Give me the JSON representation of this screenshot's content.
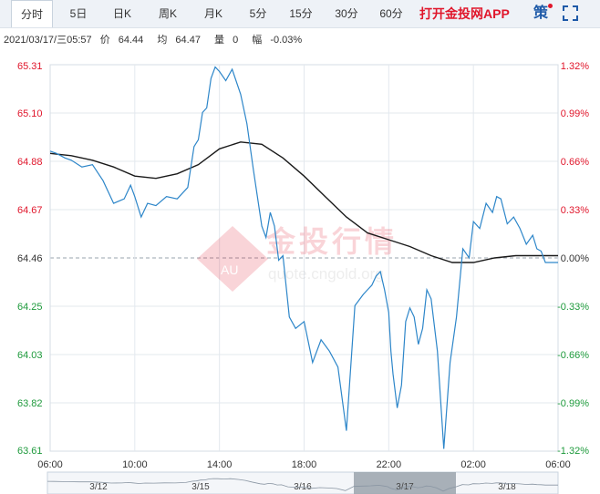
{
  "tabs": [
    {
      "label": "分时",
      "active": true
    },
    {
      "label": "5日"
    },
    {
      "label": "日K"
    },
    {
      "label": "周K"
    },
    {
      "label": "月K"
    },
    {
      "label": "5分"
    },
    {
      "label": "15分"
    },
    {
      "label": "30分"
    },
    {
      "label": "60分"
    }
  ],
  "promo_label": "打开金投网APP",
  "strategy_label": "策",
  "info": {
    "datetime": "2021/03/17/三05:57",
    "price_label": "价",
    "price": "64.44",
    "avg_label": "均",
    "avg": "64.47",
    "volume_label": "量",
    "volume": "0",
    "change_label": "幅",
    "change": "-0.03%"
  },
  "watermark": {
    "brand": "金投行情",
    "url": "quote.cngold.org",
    "logo_text": "AU"
  },
  "colors": {
    "up": "#e0162b",
    "down": "#1e9a3c",
    "price_line": "#2d86c9",
    "avg_line": "#1a1a1a",
    "grid": "#e3e8ee",
    "baseline": "#9aa3ad"
  },
  "chart_data": {
    "type": "line",
    "base_price": 64.46,
    "ylim": [
      63.61,
      65.31
    ],
    "y_ticks": [
      "65.31",
      "65.10",
      "64.88",
      "64.67",
      "64.46",
      "64.25",
      "64.03",
      "63.82",
      "63.61"
    ],
    "pct_ticks": [
      "1.32%",
      "0.99%",
      "0.66%",
      "0.33%",
      "0.00%",
      "-0.33%",
      "-0.66%",
      "-0.99%",
      "-1.32%"
    ],
    "x_ticks": [
      "06:00",
      "10:00",
      "14:00",
      "18:00",
      "22:00",
      "02:00",
      "06:00"
    ],
    "x_range_hours": [
      0,
      24
    ],
    "series": [
      {
        "name": "价",
        "x": [
          0,
          0.3,
          0.7,
          1.0,
          1.5,
          2.0,
          2.5,
          3.0,
          3.5,
          3.8,
          4.0,
          4.3,
          4.6,
          5.0,
          5.5,
          6.0,
          6.5,
          6.8,
          7.0,
          7.2,
          7.4,
          7.6,
          7.8,
          8.0,
          8.3,
          8.6,
          9.0,
          9.3,
          9.6,
          10.0,
          10.2,
          10.4,
          10.6,
          10.8,
          11.0,
          11.3,
          11.6,
          12.0,
          12.4,
          12.8,
          13.2,
          13.6,
          14.0,
          14.4,
          14.8,
          15.0,
          15.2,
          15.4,
          15.6,
          15.8,
          16.0,
          16.1,
          16.2,
          16.4,
          16.6,
          16.8,
          17.0,
          17.2,
          17.4,
          17.6,
          17.8,
          18.0,
          18.3,
          18.6,
          18.9,
          19.2,
          19.5,
          19.8,
          20.0,
          20.3,
          20.6,
          20.9,
          21.1,
          21.3,
          21.6,
          21.9,
          22.2,
          22.5,
          22.8,
          23.0,
          23.2,
          23.4,
          23.6,
          23.8,
          24.0
        ],
        "values": [
          64.93,
          64.92,
          64.9,
          64.89,
          64.86,
          64.87,
          64.8,
          64.7,
          64.72,
          64.78,
          64.73,
          64.64,
          64.7,
          64.69,
          64.73,
          64.72,
          64.77,
          64.95,
          64.98,
          65.1,
          65.12,
          65.25,
          65.3,
          65.28,
          65.24,
          65.29,
          65.18,
          65.05,
          64.85,
          64.6,
          64.55,
          64.66,
          64.6,
          64.45,
          64.47,
          64.2,
          64.15,
          64.18,
          64.0,
          64.1,
          64.05,
          63.98,
          63.7,
          64.25,
          64.3,
          64.32,
          64.34,
          64.38,
          64.4,
          64.32,
          64.22,
          64.05,
          63.95,
          63.8,
          63.9,
          64.18,
          64.24,
          64.2,
          64.08,
          64.15,
          64.32,
          64.28,
          64.05,
          63.62,
          64.0,
          64.2,
          64.5,
          64.46,
          64.62,
          64.59,
          64.7,
          64.66,
          64.73,
          64.72,
          64.61,
          64.64,
          64.59,
          64.52,
          64.56,
          64.5,
          64.49,
          64.44,
          64.44,
          64.44,
          64.44
        ]
      },
      {
        "name": "均",
        "x": [
          0,
          1.0,
          2.0,
          3.0,
          4.0,
          5.0,
          6.0,
          7.0,
          8.0,
          9.0,
          10.0,
          11.0,
          12.0,
          13.0,
          14.0,
          15.0,
          16.0,
          17.0,
          18.0,
          19.0,
          20.0,
          21.0,
          22.0,
          23.0,
          24.0
        ],
        "values": [
          64.92,
          64.91,
          64.89,
          64.86,
          64.82,
          64.81,
          64.83,
          64.87,
          64.94,
          64.97,
          64.96,
          64.9,
          64.82,
          64.73,
          64.64,
          64.57,
          64.54,
          64.51,
          64.47,
          64.44,
          64.44,
          64.46,
          64.47,
          64.47,
          64.47
        ]
      }
    ],
    "nav_labels": [
      "3/12",
      "3/15",
      "3/16",
      "3/17",
      "3/18"
    ],
    "nav_selected": "3/17"
  }
}
